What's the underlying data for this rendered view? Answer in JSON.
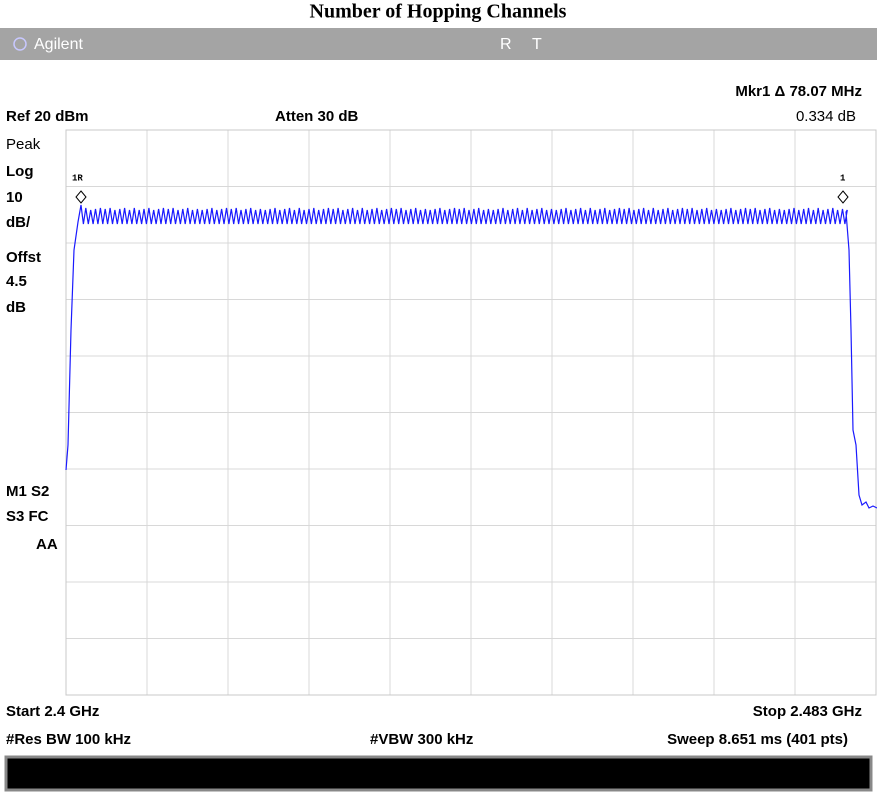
{
  "title": "Number of Hopping Channels",
  "header": {
    "brand": "Agilent",
    "status": [
      "R",
      "T"
    ]
  },
  "marker": {
    "readout": "Mkr1 Δ 78.07 MHz",
    "value": "0.334 dB",
    "labels": [
      "1R",
      "1"
    ]
  },
  "top": {
    "ref": "Ref 20 dBm",
    "atten": "Atten 30 dB"
  },
  "left_labels": [
    "Peak",
    "Log",
    "10",
    "dB/",
    "Offst",
    "4.5",
    "dB",
    "M1  S2",
    "S3  FC",
    "AA"
  ],
  "bottom": {
    "start": "Start 2.4 GHz",
    "stop": "Stop 2.483 GHz",
    "rbw": "#Res BW 100 kHz",
    "vbw": "#VBW 300 kHz",
    "sweep": "Sweep 8.651 ms (401 pts)"
  }
}
